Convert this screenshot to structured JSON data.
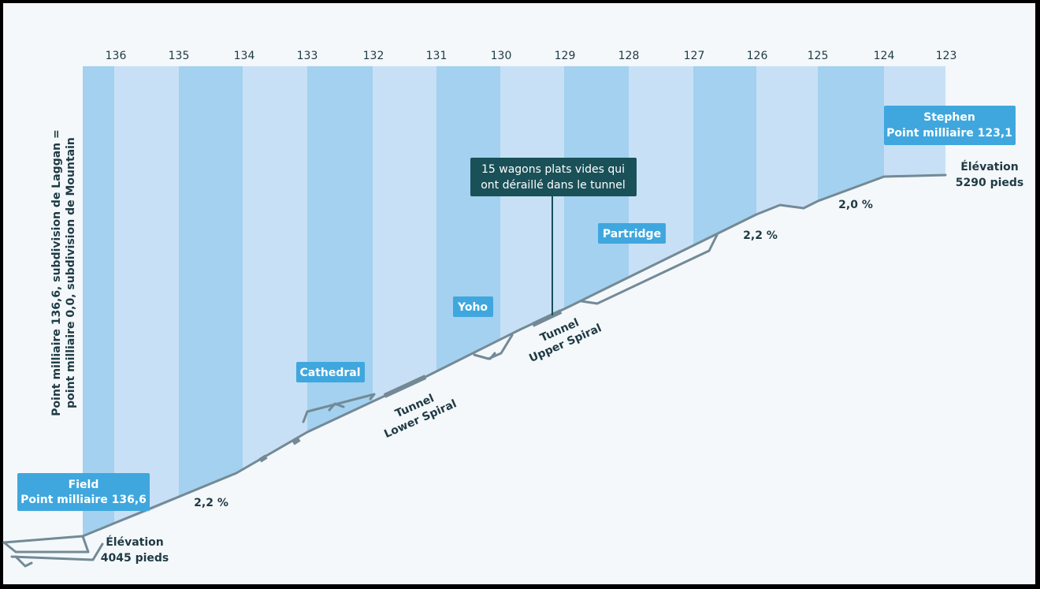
{
  "miles": [
    "136",
    "135",
    "134",
    "133",
    "132",
    "131",
    "130",
    "129",
    "128",
    "127",
    "126",
    "125",
    "124",
    "123"
  ],
  "vertical_label": {
    "line1": "Point milliaire 136,6, subdivision de Laggan =",
    "line2": "point milliaire 0,0, subdivision de Mountain"
  },
  "start_station": {
    "name": "Field",
    "milepost": "Point milliaire 136,6"
  },
  "end_station": {
    "name": "Stephen",
    "milepost": "Point milliaire 123,1"
  },
  "start_elevation": {
    "line1": "Élévation",
    "line2": "4045 pieds"
  },
  "end_elevation": {
    "line1": "Élévation",
    "line2": "5290 pieds"
  },
  "grades": {
    "lower": "2,2 %",
    "middle": "2,2 %",
    "upper": "2,0 %"
  },
  "sidings": {
    "cathedral": "Cathedral",
    "yoho": "Yoho",
    "partridge": "Partridge"
  },
  "tunnels": {
    "lower": {
      "line1": "Tunnel",
      "line2": "Lower Spiral"
    },
    "upper": {
      "line1": "Tunnel",
      "line2": "Upper Spiral"
    }
  },
  "callout": {
    "line1": "15 wagons plats vides qui",
    "line2": "ont déraillé dans le tunnel"
  },
  "colors": {
    "background": "#f4f8fb",
    "band_dark": "#a3d1ef",
    "band_light": "#c8e0f5",
    "track": "#738a96",
    "label_box": "#3fa7de",
    "callout_box": "#1a5058",
    "text_dark": "#1f3a44"
  }
}
